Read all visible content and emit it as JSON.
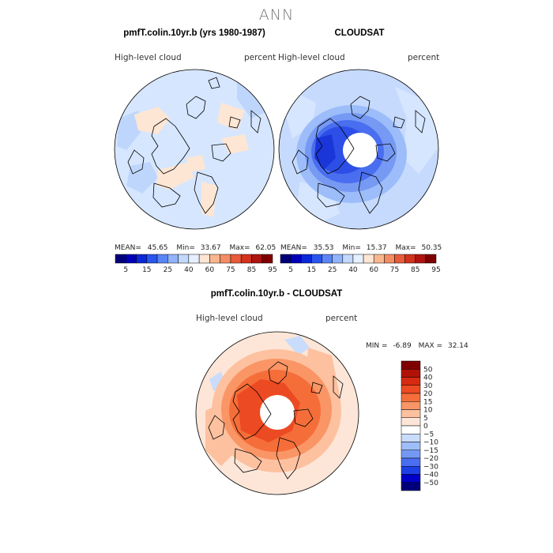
{
  "title": "ANN",
  "panels": [
    {
      "title": "pmfT.colin.10yr.b (yrs 1980-1987)",
      "variable": "High-level cloud",
      "units": "percent",
      "stats": {
        "mean_label": "MEAN=",
        "mean": "45.65",
        "min_label": "Min=",
        "min": "33.67",
        "max_label": "Max=",
        "max": "62.05"
      }
    },
    {
      "title": "CLOUDSAT",
      "variable": "High-level cloud",
      "units": "percent",
      "stats": {
        "mean_label": "MEAN=",
        "mean": "35.53",
        "min_label": "Min=",
        "min": "15.37",
        "max_label": "Max=",
        "max": "50.35"
      }
    },
    {
      "title": "pmfT.colin.10yr.b - CLOUDSAT",
      "variable": "High-level cloud",
      "units": "percent",
      "stats": {
        "min_label": "MIN =",
        "min": "-6.89",
        "max_label": "MAX =",
        "max": "32.14"
      }
    }
  ],
  "chart_data": [
    {
      "type": "heatmap",
      "projection": "north polar stereographic",
      "title": "pmfT.colin.10yr.b (yrs 1980-1987)",
      "variable": "High-level cloud",
      "units": "percent",
      "mean": 45.65,
      "min": 33.67,
      "max": 62.05,
      "colorbar": {
        "levels": [
          5,
          15,
          25,
          40,
          60,
          75,
          85,
          95
        ],
        "colors": [
          "#00007a",
          "#0000b8",
          "#0a28d8",
          "#2a55ee",
          "#5a85f5",
          "#90b3fb",
          "#c2d8fd",
          "#e6f0ff",
          "#fde6d4",
          "#f9b78f",
          "#f48c63",
          "#e85a38",
          "#d2321e",
          "#ad1410",
          "#7f0000"
        ]
      }
    },
    {
      "type": "heatmap",
      "projection": "north polar stereographic",
      "title": "CLOUDSAT",
      "variable": "High-level cloud",
      "units": "percent",
      "mean": 35.53,
      "min": 15.37,
      "max": 50.35,
      "colorbar": {
        "levels": [
          5,
          15,
          25,
          40,
          60,
          75,
          85,
          95
        ],
        "colors": [
          "#00007a",
          "#0000b8",
          "#0a28d8",
          "#2a55ee",
          "#5a85f5",
          "#90b3fb",
          "#c2d8fd",
          "#e6f0ff",
          "#fde6d4",
          "#f9b78f",
          "#f48c63",
          "#e85a38",
          "#d2321e",
          "#ad1410",
          "#7f0000"
        ]
      }
    },
    {
      "type": "heatmap",
      "projection": "north polar stereographic",
      "title": "pmfT.colin.10yr.b - CLOUDSAT",
      "variable": "High-level cloud",
      "units": "percent",
      "min": -6.89,
      "max": 32.14,
      "colorbar": {
        "levels": [
          50,
          40,
          30,
          20,
          15,
          10,
          5,
          0,
          -5,
          -10,
          -15,
          -20,
          -30,
          -40,
          -50
        ],
        "colors": [
          "#7f0000",
          "#b01208",
          "#d62a12",
          "#ec4a22",
          "#f56e3a",
          "#fa9566",
          "#fdc1a0",
          "#fde6d8",
          "#ffffff",
          "#c9dcfb",
          "#9ebefa",
          "#7498f3",
          "#4a6ef0",
          "#1f3fe6",
          "#0000c8",
          "#00007a"
        ]
      }
    }
  ]
}
